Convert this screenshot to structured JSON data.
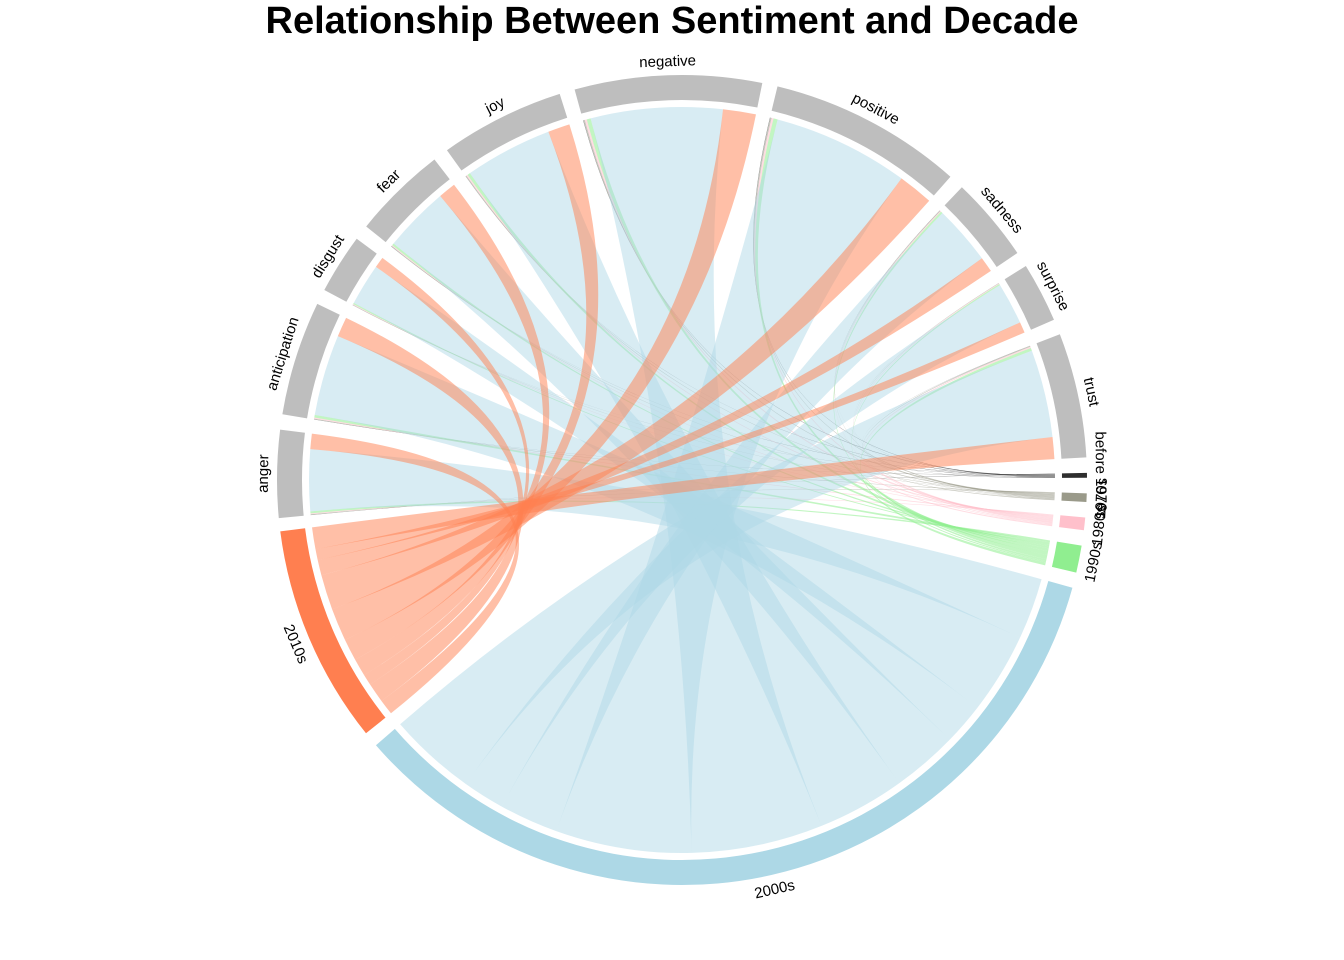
{
  "chart_data": {
    "type": "chord",
    "title": "Relationship Between Sentiment and Decade",
    "sentiments": [
      "anger",
      "anticipation",
      "disgust",
      "fear",
      "joy",
      "negative",
      "positive",
      "sadness",
      "surprise",
      "trust"
    ],
    "decades": [
      "before 1970s",
      "1970s",
      "1980s",
      "1990s",
      "2000s",
      "2010s"
    ],
    "decade_colors": {
      "before 1970s": "#2e2e2e",
      "1970s": "#9a9a8a",
      "1980s": "#ffc0cb",
      "1990s": "#90ee90",
      "2000s": "#add8e6",
      "2010s": "#ff7f50"
    },
    "sentiment_color": "#bebebe",
    "flows": [
      {
        "sentiment": "anger",
        "values": {
          "before 1970s": 0.1,
          "1970s": 0.3,
          "1980s": 0.4,
          "1990s": 0.9,
          "2000s": 28,
          "2010s": 7
        }
      },
      {
        "sentiment": "anticipation",
        "values": {
          "before 1970s": 0.1,
          "1970s": 0.3,
          "1980s": 0.5,
          "1990s": 1.2,
          "2000s": 37,
          "2010s": 9
        }
      },
      {
        "sentiment": "disgust",
        "values": {
          "before 1970s": 0.05,
          "1970s": 0.2,
          "1980s": 0.3,
          "1990s": 0.6,
          "2000s": 19,
          "2010s": 5
        }
      },
      {
        "sentiment": "fear",
        "values": {
          "before 1970s": 0.1,
          "1970s": 0.3,
          "1980s": 0.4,
          "1990s": 0.9,
          "2000s": 30,
          "2010s": 8
        }
      },
      {
        "sentiment": "joy",
        "values": {
          "before 1970s": 0.1,
          "1970s": 0.4,
          "1980s": 0.6,
          "1990s": 1.3,
          "2000s": 40,
          "2010s": 10
        }
      },
      {
        "sentiment": "negative",
        "values": {
          "before 1970s": 0.2,
          "1970s": 0.6,
          "1980s": 0.9,
          "1990s": 1.8,
          "2000s": 60,
          "2010s": 15
        }
      },
      {
        "sentiment": "positive",
        "values": {
          "before 1970s": 0.2,
          "1970s": 0.6,
          "1980s": 0.9,
          "1990s": 1.9,
          "2000s": 62,
          "2010s": 16
        }
      },
      {
        "sentiment": "sadness",
        "values": {
          "before 1970s": 0.1,
          "1970s": 0.3,
          "1980s": 0.4,
          "1990s": 0.9,
          "2000s": 27,
          "2010s": 7
        }
      },
      {
        "sentiment": "surprise",
        "values": {
          "before 1970s": 0.05,
          "1970s": 0.2,
          "1980s": 0.3,
          "1990s": 0.6,
          "2000s": 19,
          "2010s": 5
        }
      },
      {
        "sentiment": "trust",
        "values": {
          "before 1970s": 0.1,
          "1970s": 0.4,
          "1980s": 0.6,
          "1990s": 1.3,
          "2000s": 40,
          "2010s": 10
        }
      }
    ]
  }
}
